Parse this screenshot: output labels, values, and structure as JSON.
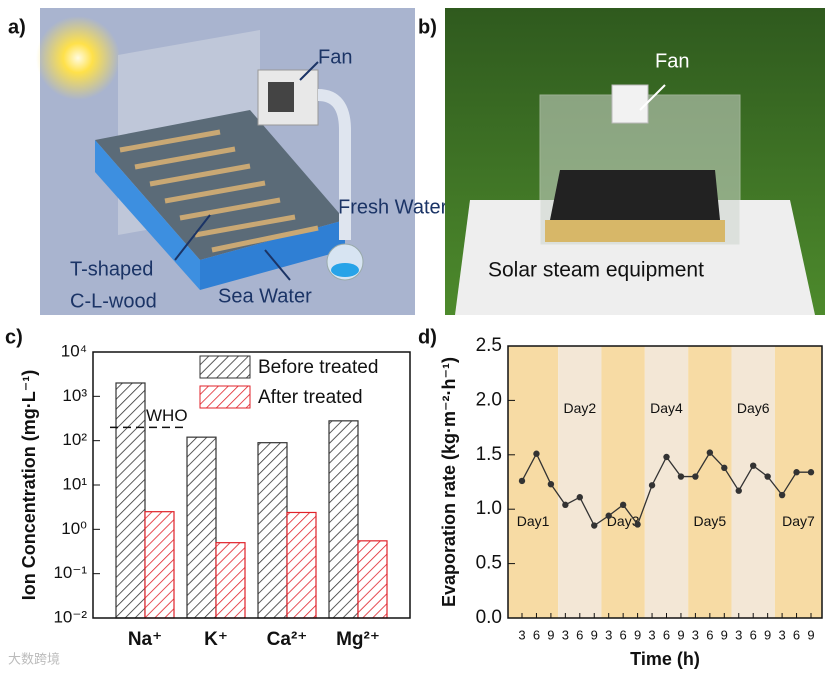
{
  "panel_a": {
    "label": "a)",
    "annotations": [
      "Fan",
      "Fresh Water",
      "T-shaped",
      "C-L-wood",
      "Sea Water"
    ]
  },
  "panel_b": {
    "label": "b)",
    "annotations": [
      "Fan",
      "Solar steam equipment"
    ]
  },
  "watermark": "大数跨境",
  "chart_data": [
    {
      "type": "bar",
      "panel_label": "c)",
      "y_label": "Ion Concentration (mg·L⁻¹)",
      "log_scale": true,
      "categories": [
        "Na⁺",
        "K⁺",
        "Ca²⁺",
        "Mg²⁺"
      ],
      "series": [
        {
          "name": "Before treated",
          "color": "#333333",
          "values": [
            2000,
            120,
            90,
            280
          ]
        },
        {
          "name": "After treated",
          "color": "#e0222a",
          "values": [
            2.5,
            0.5,
            2.4,
            0.55
          ]
        }
      ],
      "reference_line": {
        "label": "WHO",
        "value": 200
      },
      "ylim": [
        0.01,
        10000
      ],
      "yticks": [
        {
          "value": 0.01,
          "label": "10⁻²"
        },
        {
          "value": 0.1,
          "label": "10⁻¹"
        },
        {
          "value": 1,
          "label": "10⁰"
        },
        {
          "value": 10,
          "label": "10¹"
        },
        {
          "value": 100,
          "label": "10²"
        },
        {
          "value": 1000,
          "label": "10³"
        },
        {
          "value": 10000,
          "label": "10⁴"
        }
      ],
      "legend": "top-right"
    },
    {
      "type": "line",
      "panel_label": "d)",
      "x_label": "Time (h)",
      "y_label": "Evaporation rate (kg·m⁻²·h⁻¹)",
      "categories": [
        "3",
        "6",
        "9",
        "3",
        "6",
        "9",
        "3",
        "6",
        "9",
        "3",
        "6",
        "9",
        "3",
        "6",
        "9",
        "3",
        "6",
        "9",
        "3",
        "6",
        "9"
      ],
      "series": [
        {
          "color": "#333333",
          "values": [
            1.26,
            1.51,
            1.23,
            1.04,
            1.11,
            0.85,
            0.94,
            1.04,
            0.86,
            1.22,
            1.48,
            1.3,
            1.3,
            1.52,
            1.38,
            1.17,
            1.4,
            1.3,
            1.13,
            1.34,
            1.34
          ]
        }
      ],
      "bands": [
        {
          "label": "Day1",
          "color": "#f7dba4"
        },
        {
          "label": "Day2",
          "color": "#f3e7d6"
        },
        {
          "label": "Day3",
          "color": "#f7dba4"
        },
        {
          "label": "Day4",
          "color": "#f3e7d6"
        },
        {
          "label": "Day5",
          "color": "#f7dba4"
        },
        {
          "label": "Day6",
          "color": "#f3e7d6"
        },
        {
          "label": "Day7",
          "color": "#f7dba4"
        }
      ],
      "ylim": [
        0,
        2.5
      ],
      "yticks": [
        {
          "value": 0,
          "label": "0.0"
        },
        0.5,
        {
          "value": 1,
          "label": "1.0"
        },
        1.5,
        {
          "value": 2,
          "label": "2.0"
        },
        2.5
      ]
    }
  ]
}
